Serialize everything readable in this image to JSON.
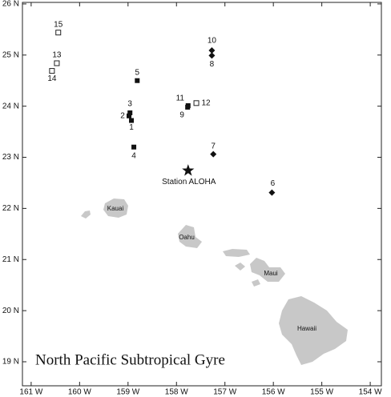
{
  "chart_data": {
    "type": "map",
    "title": "North Pacific Subtropical Gyre",
    "xlim": [
      -161.18,
      -153.77
    ],
    "ylim": [
      18.53,
      26.03
    ],
    "xticks": [
      {
        "value": -161,
        "label": "161 W"
      },
      {
        "value": -160,
        "label": "160 W"
      },
      {
        "value": -159,
        "label": "159 W"
      },
      {
        "value": -158,
        "label": "158 W"
      },
      {
        "value": -157,
        "label": "157 W"
      },
      {
        "value": -156,
        "label": "156 W"
      },
      {
        "value": -155,
        "label": "155 W"
      },
      {
        "value": -154,
        "label": "154 W"
      }
    ],
    "yticks": [
      {
        "value": 19,
        "label": "19 N"
      },
      {
        "value": 20,
        "label": "20 N"
      },
      {
        "value": 21,
        "label": "21 N"
      },
      {
        "value": 22,
        "label": "22 N"
      },
      {
        "value": 23,
        "label": "23 N"
      },
      {
        "value": 24,
        "label": "24 N"
      },
      {
        "value": 25,
        "label": "25 N"
      },
      {
        "value": 26,
        "label": "26 N"
      }
    ],
    "points": {
      "names": [
        "15",
        "13",
        "14",
        "5",
        "10",
        "8",
        "11",
        "9",
        "12",
        "3",
        "2",
        "1",
        "4",
        "7",
        "6",
        "Station ALOHA"
      ],
      "x": [
        -160.44,
        -160.47,
        -160.57,
        -158.81,
        -157.27,
        -157.27,
        -157.76,
        -157.77,
        -157.59,
        -158.96,
        -158.98,
        -158.93,
        -158.88,
        -157.24,
        -156.03,
        -157.76
      ],
      "y": [
        25.44,
        24.84,
        24.69,
        24.5,
        25.09,
        24.99,
        24.01,
        23.98,
        24.06,
        23.87,
        23.81,
        23.72,
        23.2,
        23.06,
        22.31,
        22.74
      ],
      "markers": [
        "open-square",
        "open-square",
        "open-square",
        "filled-square",
        "diamond",
        "diamond",
        "filled-square",
        "filled-square",
        "open-square",
        "filled-square",
        "filled-square",
        "filled-square",
        "filled-square",
        "diamond",
        "diamond",
        "star"
      ]
    },
    "islands": [
      "Kauai",
      "Oahu",
      "Maui",
      "Hawaii"
    ]
  }
}
